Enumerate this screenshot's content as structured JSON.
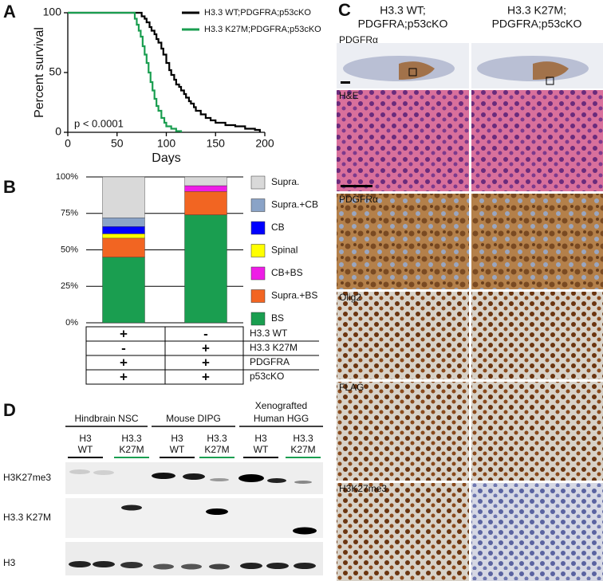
{
  "panel_labels": [
    "A",
    "B",
    "C",
    "D"
  ],
  "chart_data": [
    {
      "type": "step",
      "xlabel": "Days",
      "ylabel": "Percent survival",
      "annotation": "p < 0.0001",
      "xlim": [
        0,
        200
      ],
      "xticks": [
        0,
        50,
        100,
        150,
        200
      ],
      "ylim": [
        0,
        100
      ],
      "yticks": [
        0,
        50,
        100
      ],
      "series": [
        {
          "name": "H3.3 WT;PDGFRA;p53cKO",
          "color": "#000000",
          "x": [
            0,
            72,
            75,
            78,
            80,
            83,
            85,
            88,
            90,
            92,
            95,
            97,
            100,
            103,
            105,
            108,
            110,
            113,
            115,
            118,
            120,
            123,
            125,
            128,
            130,
            135,
            140,
            145,
            150,
            160,
            170,
            180,
            190,
            195
          ],
          "values": [
            100,
            100,
            97,
            95,
            92,
            88,
            85,
            82,
            78,
            75,
            70,
            65,
            58,
            52,
            48,
            44,
            40,
            38,
            35,
            32,
            29,
            26,
            24,
            21,
            18,
            15,
            12,
            10,
            8,
            6,
            5,
            3,
            2,
            0
          ]
        },
        {
          "name": "H3.3 K27M;PDGFRA;p53cKO",
          "color": "#1a9e50",
          "x": [
            0,
            65,
            68,
            70,
            72,
            74,
            76,
            78,
            80,
            82,
            84,
            86,
            88,
            90,
            92,
            95,
            98,
            100,
            105,
            110,
            115
          ],
          "values": [
            100,
            100,
            95,
            90,
            85,
            80,
            72,
            65,
            58,
            50,
            42,
            35,
            28,
            22,
            18,
            12,
            8,
            5,
            3,
            1,
            0
          ]
        }
      ]
    },
    {
      "type": "stacked-bar",
      "ylim": [
        0,
        100
      ],
      "yticks": [
        {
          "value": 0,
          "label": "0%"
        },
        {
          "value": 25,
          "label": "25%"
        },
        {
          "value": 50,
          "label": "50%"
        },
        {
          "value": 75,
          "label": "75%"
        },
        {
          "value": 100,
          "label": "100%"
        }
      ],
      "grid": true,
      "series": [
        {
          "name": "Supra.",
          "color": "#d9d9d9",
          "values": [
            28,
            6
          ]
        },
        {
          "name": "Supra.+CB",
          "color": "#8aa3c7",
          "values": [
            6,
            0
          ]
        },
        {
          "name": "CB",
          "color": "#0000ff",
          "values": [
            5,
            0
          ]
        },
        {
          "name": "Spinal",
          "color": "#ffff00",
          "values": [
            3,
            0
          ]
        },
        {
          "name": "CB+BS",
          "color": "#ee1ce6",
          "values": [
            0,
            4
          ]
        },
        {
          "name": "Supra.+BS",
          "color": "#f26522",
          "values": [
            13,
            16
          ]
        },
        {
          "name": "BS",
          "color": "#1a9e50",
          "values": [
            45,
            74
          ]
        }
      ],
      "genotype_table": [
        [
          "+",
          "-",
          "H3.3 WT"
        ],
        [
          "-",
          "+",
          "H3.3 K27M"
        ],
        [
          "+",
          "+",
          "PDGFRA"
        ],
        [
          "+",
          "+",
          "p53cKO"
        ]
      ]
    }
  ],
  "histology": {
    "columns": [
      [
        "H3.3 WT;",
        "PDGFRA;p53cKO"
      ],
      [
        "H3.3 K27M;",
        "PDGFRA;p53cKO"
      ]
    ],
    "rows": [
      "PDGFRα",
      "H&E",
      "PDGFRα",
      "Olig2",
      "FLAG",
      "H3K27me3"
    ]
  },
  "western": {
    "groups": [
      {
        "title": [
          "Hindbrain NSC"
        ],
        "lanes": [
          [
            "H3",
            "WT"
          ],
          [
            "H3.3",
            "K27M"
          ]
        ]
      },
      {
        "title": [
          "Mouse DIPG"
        ],
        "lanes": [
          [
            "H3",
            "WT"
          ],
          [
            "H3.3",
            "K27M"
          ]
        ]
      },
      {
        "title": [
          "Xenografted",
          "Human HGG"
        ],
        "lanes": [
          [
            "H3",
            "WT"
          ],
          [
            "H3.3",
            "K27M"
          ]
        ]
      }
    ],
    "rows": [
      "H3K27me3",
      "H3.3 K27M",
      "H3"
    ]
  }
}
